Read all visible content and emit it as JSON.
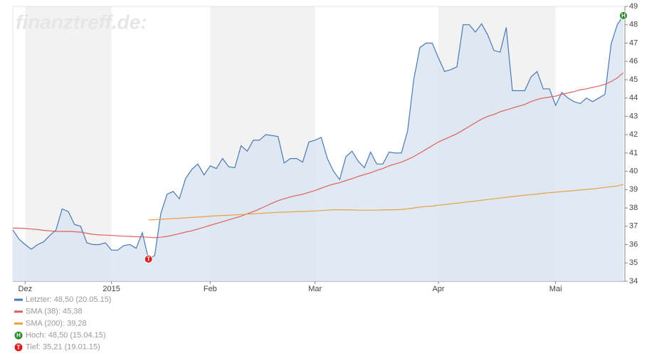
{
  "chart_data": {
    "type": "line",
    "watermark": "finanztreff.de:",
    "categories": [
      null,
      null,
      "Dez",
      null,
      null,
      null,
      null,
      null,
      null,
      null,
      null,
      null,
      null,
      null,
      null,
      null,
      "2015",
      null,
      null,
      null,
      null,
      null,
      null,
      null,
      null,
      null,
      null,
      null,
      null,
      null,
      null,
      null,
      "Feb",
      null,
      null,
      null,
      null,
      null,
      null,
      null,
      null,
      null,
      null,
      null,
      null,
      null,
      null,
      null,
      null,
      "Mar",
      null,
      null,
      null,
      null,
      null,
      null,
      null,
      null,
      null,
      null,
      null,
      null,
      null,
      null,
      null,
      null,
      null,
      null,
      null,
      "Apr",
      null,
      null,
      null,
      null,
      null,
      null,
      null,
      null,
      null,
      null,
      null,
      null,
      null,
      null,
      null,
      null,
      null,
      null,
      "Mai",
      null,
      null,
      null,
      null,
      null,
      null,
      null,
      null,
      null,
      null,
      null
    ],
    "series": [
      {
        "name": "Letzter: 48,50 (20.05.15)",
        "color": "#4a7ab5",
        "fill": "#dbe5f2",
        "values": [
          36.8,
          36.3,
          36.0,
          35.75,
          36.0,
          36.15,
          36.5,
          36.8,
          37.95,
          37.8,
          37.1,
          37.0,
          36.1,
          36.0,
          36.0,
          36.1,
          35.7,
          35.7,
          35.95,
          36.0,
          35.8,
          36.65,
          35.21,
          35.4,
          37.7,
          38.75,
          38.9,
          38.5,
          39.6,
          40.1,
          40.4,
          39.8,
          40.3,
          40.15,
          40.7,
          40.25,
          40.2,
          41.4,
          41.1,
          41.7,
          41.7,
          42.0,
          41.95,
          41.9,
          40.45,
          40.7,
          40.7,
          40.5,
          41.6,
          41.7,
          41.85,
          40.7,
          40.0,
          39.55,
          40.8,
          41.1,
          40.55,
          40.2,
          41.05,
          40.4,
          40.4,
          41.05,
          41.0,
          41.0,
          42.2,
          45.0,
          46.75,
          47.0,
          47.0,
          46.2,
          45.45,
          45.55,
          45.7,
          48.0,
          48.0,
          47.6,
          48.05,
          47.45,
          46.6,
          46.5,
          47.85,
          44.4,
          44.4,
          44.4,
          45.15,
          45.45,
          44.5,
          44.5,
          43.6,
          44.3,
          44.0,
          43.8,
          43.7,
          44.0,
          43.8,
          44.0,
          44.2,
          46.95,
          48.0,
          48.5
        ]
      },
      {
        "name": "SMA (38): 45,38",
        "color": "#e0605a",
        "values": [
          36.9,
          36.9,
          36.88,
          36.85,
          36.82,
          36.78,
          36.75,
          36.72,
          36.72,
          36.72,
          36.7,
          36.68,
          36.62,
          36.56,
          36.53,
          36.52,
          36.5,
          36.48,
          36.46,
          36.45,
          36.43,
          36.42,
          36.4,
          36.38,
          36.4,
          36.45,
          36.52,
          36.6,
          36.68,
          36.75,
          36.85,
          36.95,
          37.05,
          37.15,
          37.25,
          37.35,
          37.45,
          37.55,
          37.68,
          37.8,
          37.95,
          38.1,
          38.25,
          38.4,
          38.5,
          38.6,
          38.68,
          38.75,
          38.85,
          38.95,
          39.08,
          39.2,
          39.3,
          39.38,
          39.5,
          39.6,
          39.72,
          39.82,
          39.92,
          40.05,
          40.15,
          40.3,
          40.4,
          40.5,
          40.65,
          40.8,
          41.0,
          41.2,
          41.4,
          41.6,
          41.75,
          41.9,
          42.05,
          42.25,
          42.45,
          42.65,
          42.85,
          43.0,
          43.1,
          43.25,
          43.35,
          43.45,
          43.55,
          43.65,
          43.8,
          43.92,
          44.0,
          44.05,
          44.1,
          44.2,
          44.28,
          44.35,
          44.45,
          44.5,
          44.58,
          44.65,
          44.75,
          44.9,
          45.1,
          45.38
        ]
      },
      {
        "name": "SMA (200): 39,28",
        "color": "#e8a040",
        "values": [
          null,
          null,
          null,
          null,
          null,
          null,
          null,
          null,
          null,
          null,
          null,
          null,
          null,
          null,
          null,
          null,
          null,
          null,
          null,
          null,
          null,
          null,
          37.35,
          37.36,
          37.38,
          37.4,
          37.42,
          37.44,
          37.46,
          37.48,
          37.5,
          37.52,
          37.55,
          37.57,
          37.59,
          37.6,
          37.62,
          37.64,
          37.66,
          37.68,
          37.7,
          37.72,
          37.74,
          37.76,
          37.77,
          37.78,
          37.8,
          37.81,
          37.82,
          37.84,
          37.86,
          37.88,
          37.9,
          37.9,
          37.9,
          37.89,
          37.88,
          37.88,
          37.88,
          37.88,
          37.89,
          37.9,
          37.9,
          37.92,
          37.95,
          38.0,
          38.05,
          38.08,
          38.1,
          38.15,
          38.18,
          38.22,
          38.26,
          38.3,
          38.34,
          38.38,
          38.42,
          38.46,
          38.5,
          38.54,
          38.58,
          38.62,
          38.66,
          38.7,
          38.73,
          38.76,
          38.8,
          38.83,
          38.86,
          38.89,
          38.92,
          38.95,
          38.98,
          39.01,
          39.04,
          39.08,
          39.12,
          39.16,
          39.2,
          39.28
        ]
      }
    ],
    "high_marker": {
      "symbol": "H",
      "label": "Hoch: 48,50 (15.04.15)",
      "color": "#2a8a2a"
    },
    "low_marker": {
      "symbol": "T",
      "label": "Tief: 35,21 (19.01.15)",
      "color": "#d82020"
    },
    "ylim": [
      34,
      49
    ],
    "yticks": [
      34,
      35,
      36,
      37,
      38,
      39,
      40,
      41,
      42,
      43,
      44,
      45,
      46,
      47,
      48,
      49
    ],
    "band_color": "#f2f2f2"
  }
}
